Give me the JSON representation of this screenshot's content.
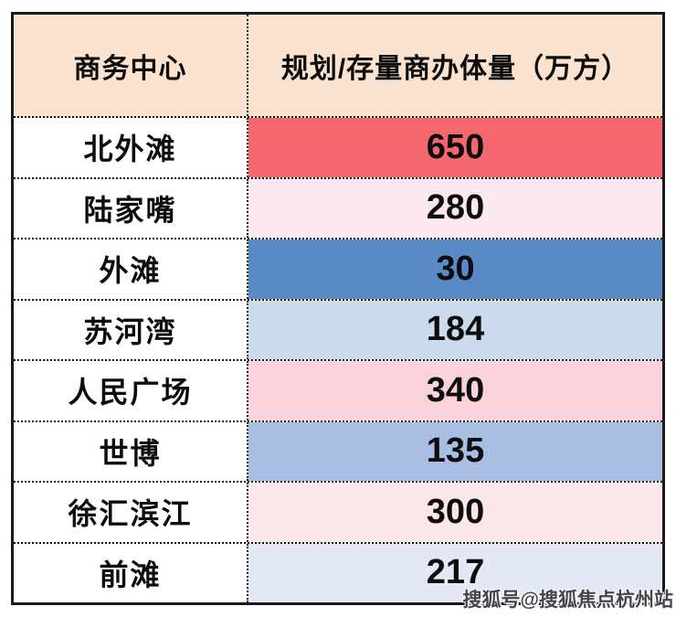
{
  "colors": {
    "header_bg": "#FBE3CF",
    "outer_border": "#1A1A1A",
    "text": "#0D0D0D",
    "watermark": "#45454E"
  },
  "table": {
    "headers": [
      {
        "label": "商务中心"
      },
      {
        "label": "规划/存量商办体量（万方）"
      }
    ],
    "rows": [
      {
        "center": "北外滩",
        "value": "650",
        "value_bg": "#F5676F"
      },
      {
        "center": "陆家嘴",
        "value": "280",
        "value_bg": "#FBE9EF"
      },
      {
        "center": "外滩",
        "value": "30",
        "value_bg": "#5A8AC6"
      },
      {
        "center": "苏河湾",
        "value": "184",
        "value_bg": "#CBDAED"
      },
      {
        "center": "人民广场",
        "value": "340",
        "value_bg": "#FAD2DB"
      },
      {
        "center": "世博",
        "value": "135",
        "value_bg": "#A9BEE3"
      },
      {
        "center": "徐汇滨江",
        "value": "300",
        "value_bg": "#FBE6EA"
      },
      {
        "center": "前滩",
        "value": "217",
        "value_bg": "#E4E7F4"
      }
    ]
  },
  "watermark": "搜狐号@搜狐焦点杭州站",
  "chart_data": {
    "type": "table",
    "title": "",
    "columns": [
      "商务中心",
      "规划/存量商办体量（万方）"
    ],
    "categories": [
      "北外滩",
      "陆家嘴",
      "外滩",
      "苏河湾",
      "人民广场",
      "世博",
      "徐汇滨江",
      "前滩"
    ],
    "values": [
      650,
      280,
      30,
      184,
      340,
      135,
      300,
      217
    ],
    "legend_position": "none",
    "grid": "dotted-cell-borders"
  }
}
